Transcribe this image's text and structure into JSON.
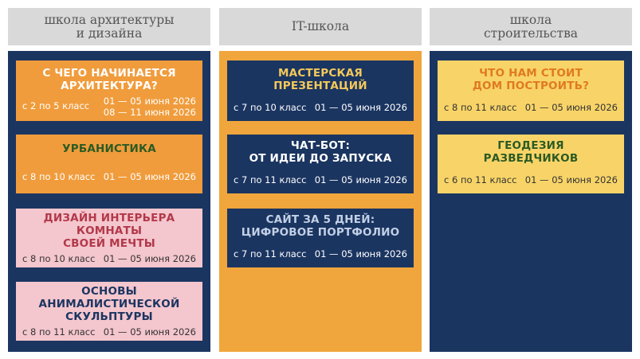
{
  "columns": [
    {
      "header": "школа архитектуры\nи дизайна",
      "bg": "#1b3561",
      "cards": [
        {
          "title": "С ЧЕГО НАЧИНАЕТСЯ\nАРХИТЕКТУРА?",
          "grade": "с 2 по 5 класс",
          "dates": "01 — 05 июня 2026\n08 — 11 июня 2026",
          "bg": "#f09c3c",
          "title_color": "#ffffff",
          "text_color": "#ffffff"
        },
        {
          "title": "УРБАНИСТИКА",
          "grade": "с 8 по 10 класс",
          "dates": "01 — 05 июня 2026",
          "bg": "#f09c3c",
          "title_color": "#2c5a23",
          "text_color": "#ffffff"
        },
        {
          "title": "ДИЗАЙН ИНТЕРЬЕРА\nКОМНАТЫ\nСВОЕЙ МЕЧТЫ",
          "grade": "с 8 по 10 класс",
          "dates": "01 — 05 июня 2026",
          "bg": "#f4c6cd",
          "title_color": "#b2384a",
          "text_color": "#333333"
        },
        {
          "title": "ОСНОВЫ\nАНИМАЛИСТИЧЕСКОЙ\nСКУЛЬПТУРЫ",
          "grade": "с 8 по 11 класс",
          "dates": "01 — 05 июня 2026",
          "bg": "#f4c6cd",
          "title_color": "#1b3561",
          "text_color": "#333333"
        }
      ]
    },
    {
      "header": "IT-школа",
      "bg": "#f0a63c",
      "cards": [
        {
          "title": "МАСТЕРСКАЯ\nПРЕЗЕНТАЦИЙ",
          "grade": "с 7 по 10 класс",
          "dates": "01 — 05 июня 2026",
          "bg": "#1b3561",
          "title_color": "#f5c95a",
          "text_color": "#ffffff"
        },
        {
          "title": "ЧАТ-БОТ:\nОТ ИДЕИ ДО ЗАПУСКА",
          "grade": "с 7 по 11 класс",
          "dates": "01 — 05 июня 2026",
          "bg": "#1b3561",
          "title_color": "#ffffff",
          "text_color": "#ffffff"
        },
        {
          "title": "САЙТ ЗА 5 ДНЕЙ:\nЦИФРОВОЕ ПОРТФОЛИО",
          "grade": "с 7 по 11 класс",
          "dates": "01 — 05 июня 2026",
          "bg": "#1b3561",
          "title_color": "#c3d0e6",
          "text_color": "#ffffff"
        }
      ]
    },
    {
      "header": "школа\nстроительства",
      "bg": "#1b3561",
      "cards": [
        {
          "title": "ЧТО НАМ СТОИТ\nДОМ ПОСТРОИТЬ?",
          "grade": "с 8 по 11 класс",
          "dates": "01 — 05 июня 2026",
          "bg": "#f8d468",
          "title_color": "#e07a1e",
          "text_color": "#333333"
        },
        {
          "title": "ГЕОДЕЗИЯ\nРАЗВЕДЧИКОВ",
          "grade": "с 6 по 11 класс",
          "dates": "01 — 05 июня 2026",
          "bg": "#f8d468",
          "title_color": "#2c5a23",
          "text_color": "#333333"
        }
      ]
    }
  ]
}
